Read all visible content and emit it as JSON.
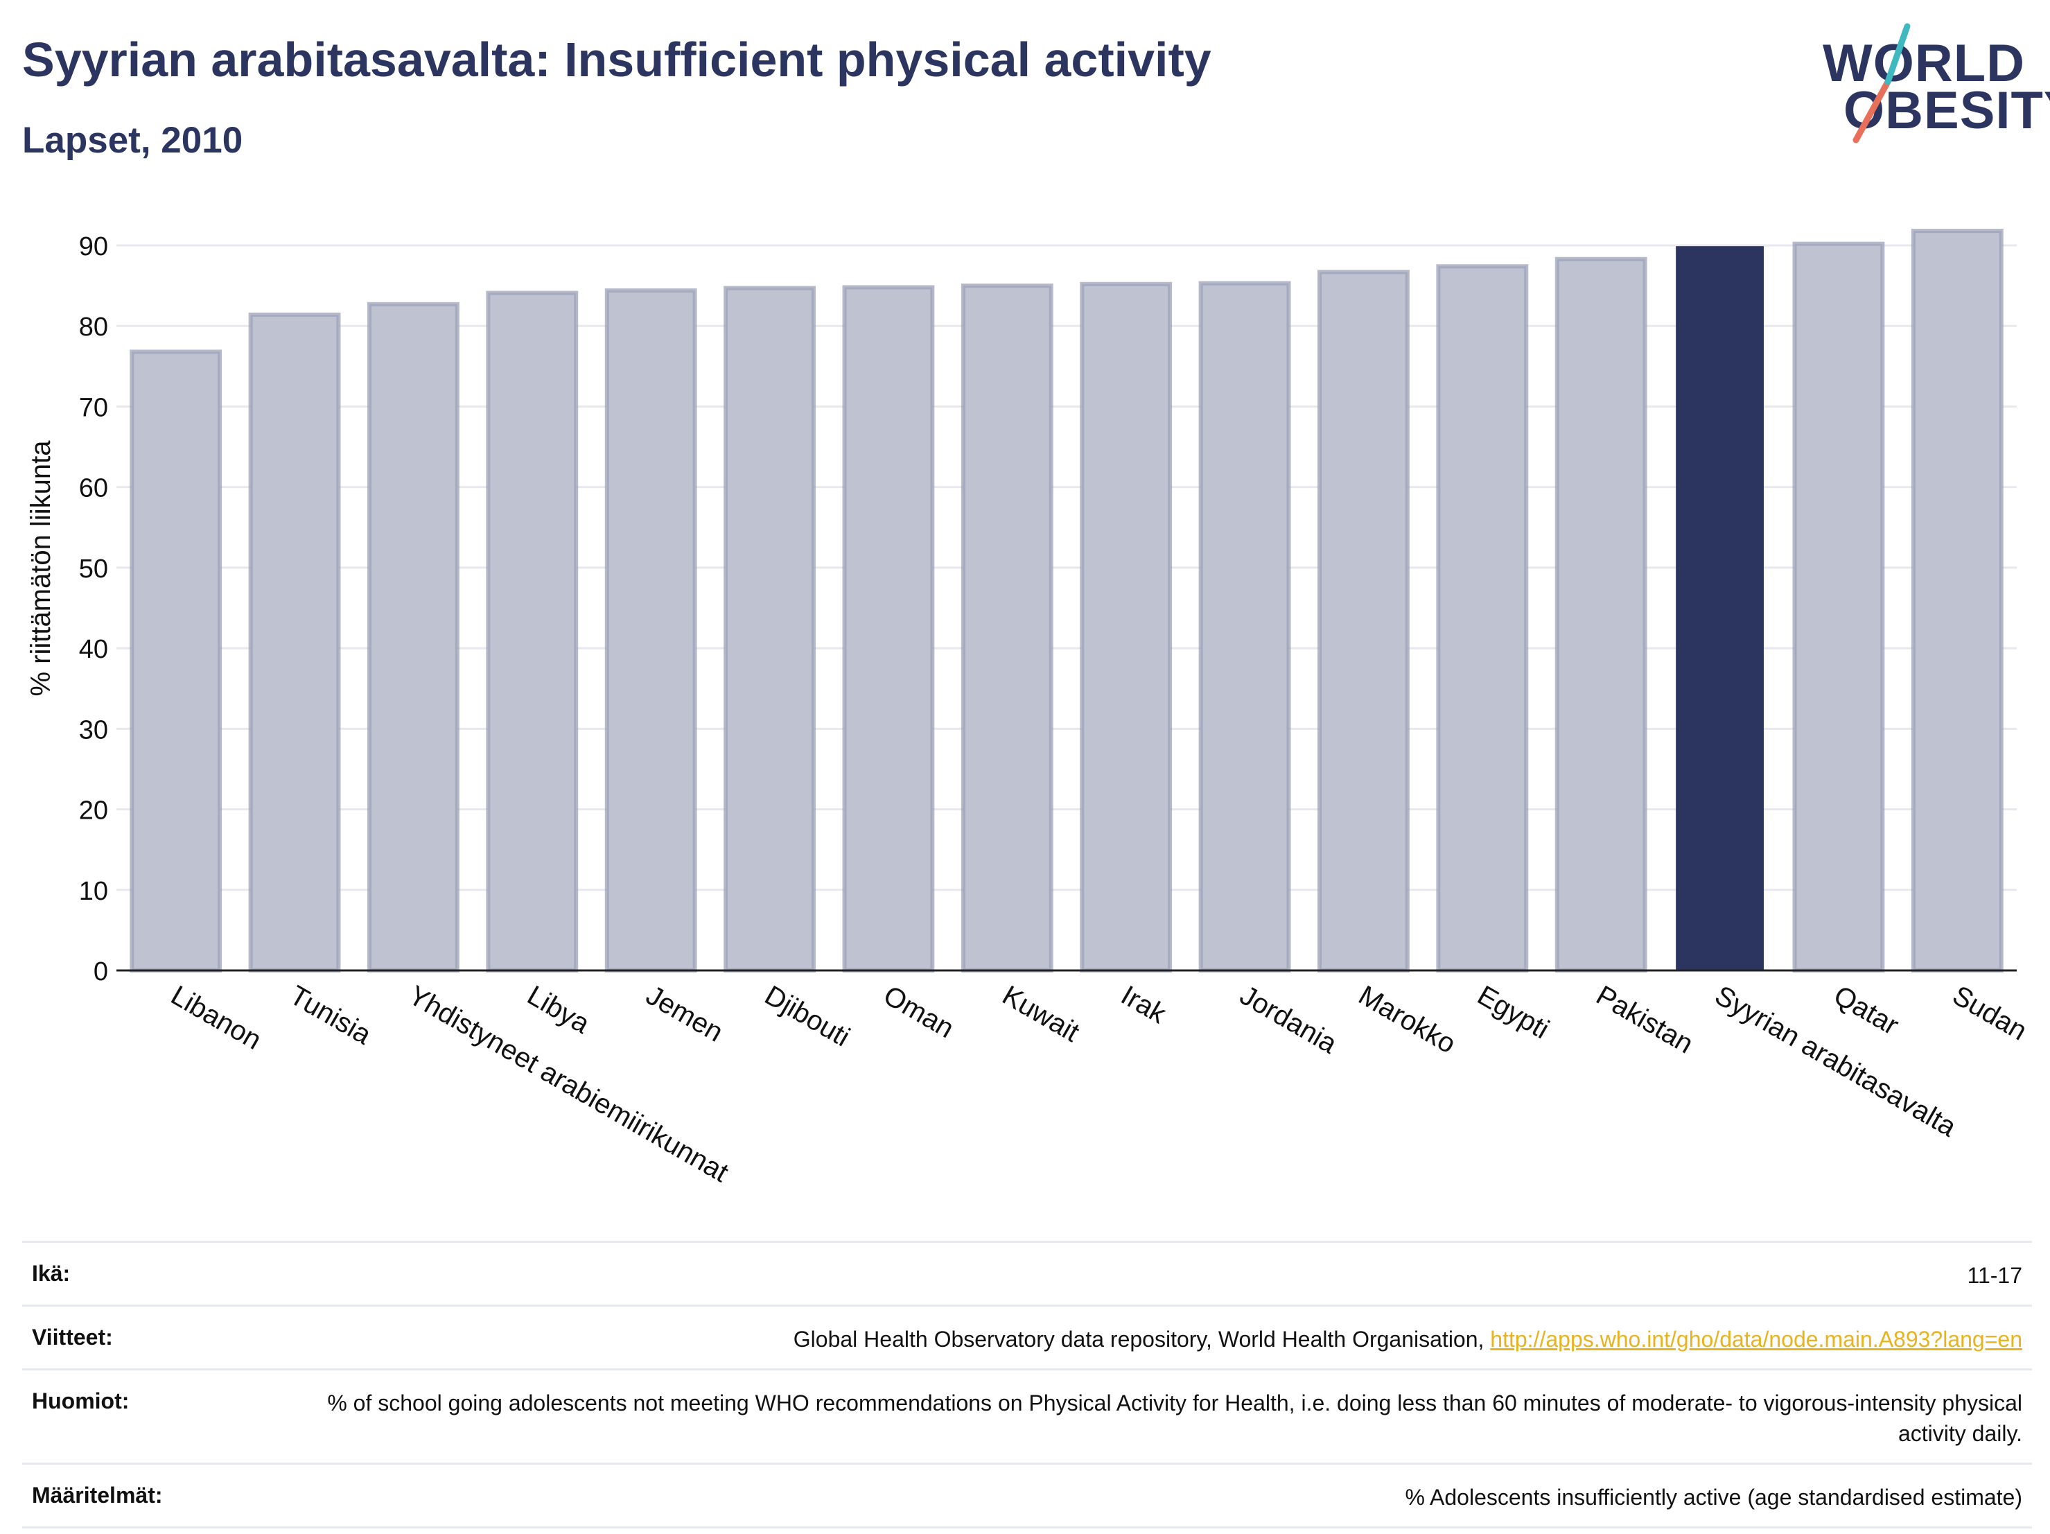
{
  "header": {
    "title": "Syyrian arabitasavalta: Insufficient physical activity",
    "subtitle": "Lapset, 2010"
  },
  "logo": {
    "line1": "WORLD",
    "line2": "OBESITY",
    "colors": {
      "text": "#2b3560",
      "slash": "#e8705a",
      "accent": "#3fb8c0"
    }
  },
  "chart_data": {
    "type": "bar",
    "title": "",
    "xlabel": "",
    "ylabel": "% riittämätön liikunta",
    "ylim": [
      0,
      90
    ],
    "yticks": [
      0,
      10,
      20,
      30,
      40,
      50,
      60,
      70,
      80,
      90
    ],
    "grid": true,
    "categories": [
      "Libanon",
      "Tunisia",
      "Yhdistyneet arabiemiirikunnat",
      "Libya",
      "Jemen",
      "Djibouti",
      "Oman",
      "Kuwait",
      "Irak",
      "Jordania",
      "Marokko",
      "Egypti",
      "Pakistan",
      "Syyrian arabitasavalta",
      "Qatar",
      "Sudan"
    ],
    "values": [
      76.8,
      81.4,
      82.7,
      84.1,
      84.4,
      84.7,
      84.8,
      85.0,
      85.2,
      85.3,
      86.7,
      87.4,
      88.3,
      89.9,
      90.2,
      91.8
    ],
    "highlight": "Syyrian arabitasavalta",
    "colors": {
      "bar": "#bfc2d0",
      "bar_edge": "#9ca2b8",
      "highlight": "#2b3560",
      "grid": "#e8e8ee",
      "axis": "#222222"
    }
  },
  "meta": {
    "age_label": "Ikä:",
    "age_value": "11-17",
    "refs_label": "Viitteet:",
    "refs_text": "Global Health Observatory data repository, World Health Organisation, ",
    "refs_link": "http://apps.who.int/gho/data/node.main.A893?lang=en",
    "notes_label": "Huomiot:",
    "notes_text": "% of school going adolescents not meeting WHO recommendations on Physical Activity for Health, i.e. doing less than 60 minutes of moderate- to vigorous-intensity physical activity daily.",
    "defs_label": "Määritelmät:",
    "defs_text": "% Adolescents insufficiently active (age standardised estimate)"
  }
}
